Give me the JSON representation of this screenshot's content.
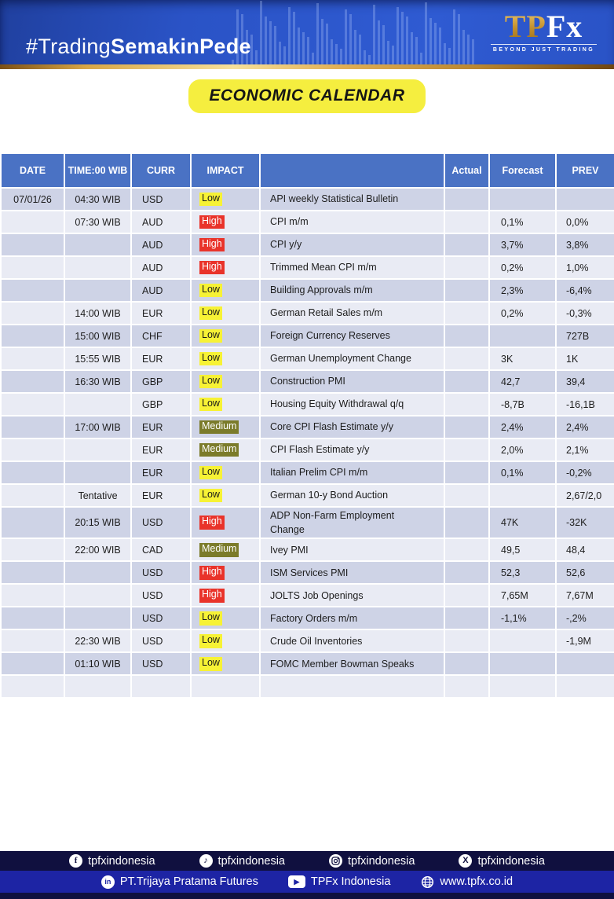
{
  "banner": {
    "hashtag_regular": "#Trading",
    "hashtag_bold": "SemakinPede",
    "logo_tp": "TP",
    "logo_fx": "Fx",
    "logo_tagline": "BEYOND JUST TRADING"
  },
  "title": "ECONOMIC CALENDAR",
  "table": {
    "columns": [
      "DATE",
      "TIME:00 WIB",
      "CURR",
      "IMPACT",
      "",
      "Actual",
      "Forecast",
      "PREV"
    ],
    "rows": [
      {
        "date": "07/01/26",
        "time": "04:30 WIB",
        "curr": "USD",
        "impact": "Low",
        "event": "API weekly Statistical Bulletin",
        "actual": "",
        "forecast": "",
        "prev": ""
      },
      {
        "date": "",
        "time": "07:30 WIB",
        "curr": "AUD",
        "impact": "High",
        "event": "CPI m/m",
        "actual": "",
        "forecast": "0,1%",
        "prev": "0,0%"
      },
      {
        "date": "",
        "time": "",
        "curr": "AUD",
        "impact": "High",
        "event": "CPI y/y",
        "actual": "",
        "forecast": "3,7%",
        "prev": "3,8%"
      },
      {
        "date": "",
        "time": "",
        "curr": "AUD",
        "impact": "High",
        "event": "Trimmed Mean CPI m/m",
        "actual": "",
        "forecast": "0,2%",
        "prev": "1,0%"
      },
      {
        "date": "",
        "time": "",
        "curr": "AUD",
        "impact": "Low",
        "event": "Building Approvals m/m",
        "actual": "",
        "forecast": "2,3%",
        "prev": "-6,4%"
      },
      {
        "date": "",
        "time": "14:00 WIB",
        "curr": "EUR",
        "impact": "Low",
        "event": "German Retail Sales m/m",
        "actual": "",
        "forecast": "0,2%",
        "prev": "-0,3%"
      },
      {
        "date": "",
        "time": "15:00 WIB",
        "curr": "CHF",
        "impact": "Low",
        "event": "Foreign Currency Reserves",
        "actual": "",
        "forecast": "",
        "prev": "727B"
      },
      {
        "date": "",
        "time": "15:55 WIB",
        "curr": "EUR",
        "impact": "Low",
        "event": "German Unemployment Change",
        "actual": "",
        "forecast": "3K",
        "prev": "1K"
      },
      {
        "date": "",
        "time": "16:30 WIB",
        "curr": "GBP",
        "impact": "Low",
        "event": "Construction PMI",
        "actual": "",
        "forecast": "42,7",
        "prev": "39,4"
      },
      {
        "date": "",
        "time": "",
        "curr": "GBP",
        "impact": "Low",
        "event": "Housing Equity Withdrawal q/q",
        "actual": "",
        "forecast": "-8,7B",
        "prev": "-16,1B"
      },
      {
        "date": "",
        "time": "17:00 WIB",
        "curr": "EUR",
        "impact": "Medium",
        "event": "Core CPI Flash Estimate y/y",
        "actual": "",
        "forecast": "2,4%",
        "prev": "2,4%"
      },
      {
        "date": "",
        "time": "",
        "curr": "EUR",
        "impact": "Medium",
        "event": "CPI Flash Estimate y/y",
        "actual": "",
        "forecast": "2,0%",
        "prev": "2,1%"
      },
      {
        "date": "",
        "time": "",
        "curr": "EUR",
        "impact": "Low",
        "event": "Italian Prelim CPI m/m",
        "actual": "",
        "forecast": "0,1%",
        "prev": "-0,2%"
      },
      {
        "date": "",
        "time": "Tentative",
        "curr": "EUR",
        "impact": "Low",
        "event": "German 10-y Bond Auction",
        "actual": "",
        "forecast": "",
        "prev": "2,67/2,0"
      },
      {
        "date": "",
        "time": "20:15 WIB",
        "curr": "USD",
        "impact": "High",
        "event": "ADP Non-Farm Employment\nChange",
        "actual": "",
        "forecast": "47K",
        "prev": "-32K"
      },
      {
        "date": "",
        "time": "22:00 WIB",
        "curr": "CAD",
        "impact": "Medium",
        "event": "Ivey PMI",
        "actual": "",
        "forecast": "49,5",
        "prev": "48,4"
      },
      {
        "date": "",
        "time": "",
        "curr": "USD",
        "impact": "High",
        "event": "ISM Services PMI",
        "actual": "",
        "forecast": "52,3",
        "prev": "52,6"
      },
      {
        "date": "",
        "time": "",
        "curr": "USD",
        "impact": "High",
        "event": "JOLTS Job Openings",
        "actual": "",
        "forecast": "7,65M",
        "prev": "7,67M"
      },
      {
        "date": "",
        "time": "",
        "curr": "USD",
        "impact": "Low",
        "event": "Factory Orders m/m",
        "actual": "",
        "forecast": "-1,1%",
        "prev": "-,2%"
      },
      {
        "date": "",
        "time": "22:30 WIB",
        "curr": "USD",
        "impact": "Low",
        "event": "Crude Oil Inventories",
        "actual": "",
        "forecast": "",
        "prev": "-1,9M"
      },
      {
        "date": "",
        "time": "01:10 WIB",
        "curr": "USD",
        "impact": "Low",
        "event": "FOMC Member Bowman Speaks",
        "actual": "",
        "forecast": "",
        "prev": ""
      },
      {
        "date": "",
        "time": "",
        "curr": "",
        "impact": "",
        "event": "",
        "actual": "",
        "forecast": "",
        "prev": ""
      }
    ]
  },
  "footer": {
    "bar1": [
      {
        "icon": "facebook",
        "label": "tpfxindonesia"
      },
      {
        "icon": "tiktok",
        "label": "tpfxindonesia"
      },
      {
        "icon": "instagram",
        "label": "tpfxindonesia"
      },
      {
        "icon": "x",
        "label": "tpfxindonesia"
      }
    ],
    "bar2": [
      {
        "icon": "linkedin",
        "label": "PT.Trijaya Pratama Futures"
      },
      {
        "icon": "youtube",
        "label": "TPFx Indonesia"
      },
      {
        "icon": "globe",
        "label": "www.tpfx.co.id"
      }
    ]
  },
  "colors": {
    "banner_blue": "#2a53c6",
    "gold": "#d8a645",
    "title_bg": "#f5ee3f",
    "table_header_bg": "#4a72c4",
    "row_dark": "#ced3e6",
    "row_light": "#e9ebf4",
    "impact_low_bg": "#f7f235",
    "impact_medium_bg": "#7b7b2a",
    "impact_high_bg": "#e9332a",
    "footer_navy": "#10103f",
    "footer_blue": "#1d24a4"
  }
}
